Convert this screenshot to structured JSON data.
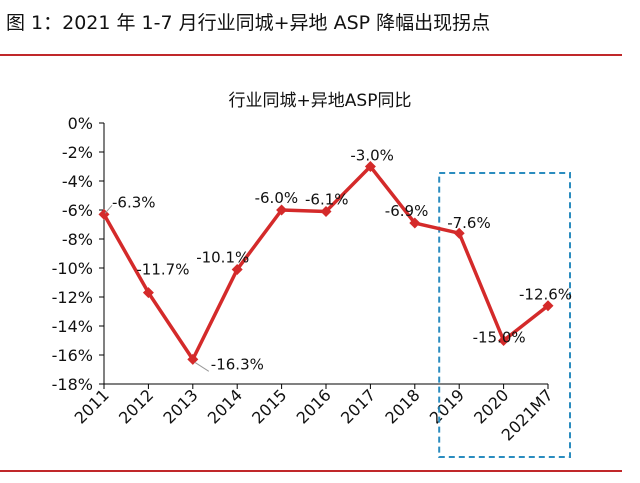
{
  "figure": {
    "caption": "图 1：2021 年 1-7 月行业同城+异地 ASP 降幅出现拐点"
  },
  "chart_data": {
    "type": "line",
    "title": "行业同城+异地ASP同比",
    "categories": [
      "2011",
      "2012",
      "2013",
      "2014",
      "2015",
      "2016",
      "2017",
      "2018",
      "2019",
      "2020",
      "2021M7"
    ],
    "series": [
      {
        "values": [
          -6.3,
          -11.7,
          -16.3,
          -10.1,
          -6.0,
          -6.1,
          -3.0,
          -6.9,
          -7.6,
          -15.0,
          -12.6
        ]
      }
    ],
    "data_labels": [
      "-6.3%",
      "-11.7%",
      "-16.3%",
      "-10.1%",
      "-6.0%",
      "-6.1%",
      "-3.0%",
      "-6.9%",
      "-7.6%",
      "-15.0%",
      "-12.6%"
    ],
    "y_tick_labels": [
      "0%",
      "-2%",
      "-4%",
      "-6%",
      "-8%",
      "-10%",
      "-12%",
      "-14%",
      "-16%",
      "-18%"
    ],
    "ylim": [
      -18,
      0
    ],
    "grid": false,
    "line_color": "#d42a2a",
    "highlight_color": "#2a8cbf",
    "highlight_categories": [
      "2019",
      "2021M7"
    ]
  }
}
